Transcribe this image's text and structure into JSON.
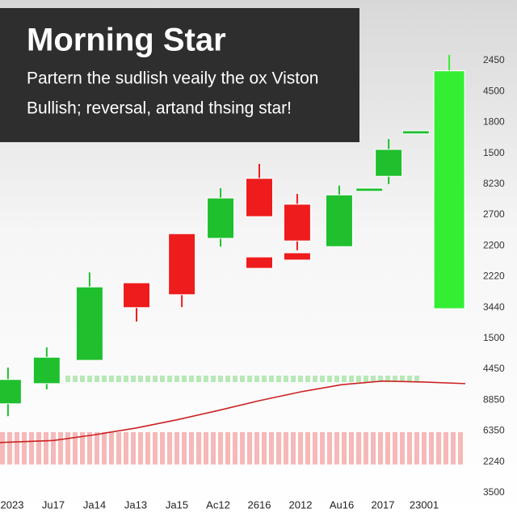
{
  "chart_data": {
    "type": "candlestick",
    "title": "Morning Star",
    "subtitle": [
      "Partern the sudlish veaily the ox Viston",
      "Bullish; reversal, artand thsing star!"
    ],
    "categories": [
      "2023",
      "Ju17",
      "Ja14",
      "Ja13",
      "Ja15",
      "Ac12",
      "2616",
      "2012",
      "Au16",
      "2017",
      "23001"
    ],
    "xlim": [
      -0.3,
      11.3
    ],
    "ylim": [
      0,
      100
    ],
    "y_labels": [
      "2450",
      "4500",
      "1800",
      "1500",
      "8230",
      "2700",
      "2200",
      "2220",
      "3440",
      "1500",
      "4450",
      "8850",
      "6350",
      "2240",
      "3500"
    ],
    "candles": {
      "x": [
        -0.1,
        0.84,
        1.88,
        3.02,
        4.12,
        5.06,
        6.0,
        6.0,
        6.92,
        6.92,
        7.94,
        8.67,
        9.14,
        9.8,
        10.61
      ],
      "open": [
        21.9,
        25.8,
        30.3,
        45.3,
        54.8,
        53.9,
        65.5,
        50.3,
        60.5,
        51.1,
        52.3,
        63.0,
        65.9,
        74.1,
        40.3
      ],
      "close": [
        26.6,
        30.9,
        44.5,
        40.5,
        43.0,
        61.7,
        58.1,
        48.1,
        53.4,
        49.7,
        62.3,
        63.6,
        71.1,
        74.7,
        86.3
      ],
      "high": [
        28.9,
        32.8,
        47.3,
        45.3,
        54.8,
        63.6,
        68.3,
        50.3,
        62.5,
        51.1,
        64.1,
        63.6,
        73.1,
        74.7,
        89.4
      ],
      "low": [
        19.5,
        24.7,
        30.3,
        37.8,
        40.6,
        52.3,
        58.1,
        48.1,
        51.6,
        49.7,
        52.3,
        63.0,
        64.4,
        74.1,
        40.3
      ],
      "colors": [
        "#1fbf2e",
        "#1fbf2e",
        "#1fbf2e",
        "#ee1c1c",
        "#ee1c1c",
        "#1fbf2e",
        "#ee1c1c",
        "#ee1c1c",
        "#ee1c1c",
        "#ee1c1c",
        "#1fbf2e",
        "#1fbf2e",
        "#1fbf2e",
        "#1fbf2e",
        "#33ee33"
      ]
    },
    "line": {
      "color": "#cc2222",
      "x": [
        -0.3,
        1,
        2,
        3,
        4,
        5,
        6,
        7,
        8,
        9,
        10,
        11
      ],
      "values": [
        14.4,
        14.8,
        15.9,
        17.2,
        18.8,
        20.6,
        22.5,
        24.2,
        25.6,
        26.3,
        26.1,
        25.8
      ]
    }
  }
}
